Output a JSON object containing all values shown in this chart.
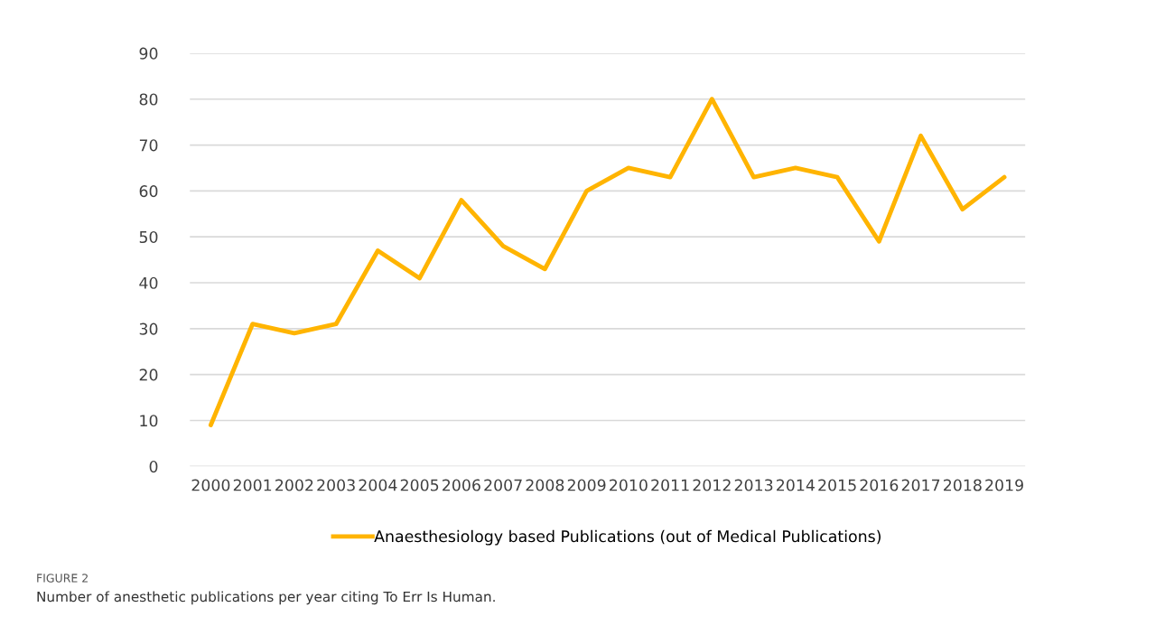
{
  "chart_data": {
    "type": "line",
    "categories": [
      "2000",
      "2001",
      "2002",
      "2003",
      "2004",
      "2005",
      "2006",
      "2007",
      "2008",
      "2009",
      "2010",
      "2011",
      "2012",
      "2013",
      "2014",
      "2015",
      "2016",
      "2017",
      "2018",
      "2019"
    ],
    "series": [
      {
        "name": "Anaesthesiology based Publications (out of Medical Publications)",
        "color": "#ffb400",
        "values": [
          9,
          31,
          29,
          31,
          47,
          41,
          58,
          48,
          43,
          60,
          65,
          63,
          80,
          63,
          65,
          63,
          49,
          72,
          56,
          63
        ]
      }
    ],
    "ylim": [
      0,
      90
    ],
    "yticks": [
      0,
      10,
      20,
      30,
      40,
      50,
      60,
      70,
      80,
      90
    ],
    "grid": "y",
    "legend": "bottom",
    "marker": "none",
    "line_style": "solid",
    "annotations": [
      "FIGURE 2",
      "Number of anesthetic publications per year citing To Err Is Human."
    ]
  }
}
